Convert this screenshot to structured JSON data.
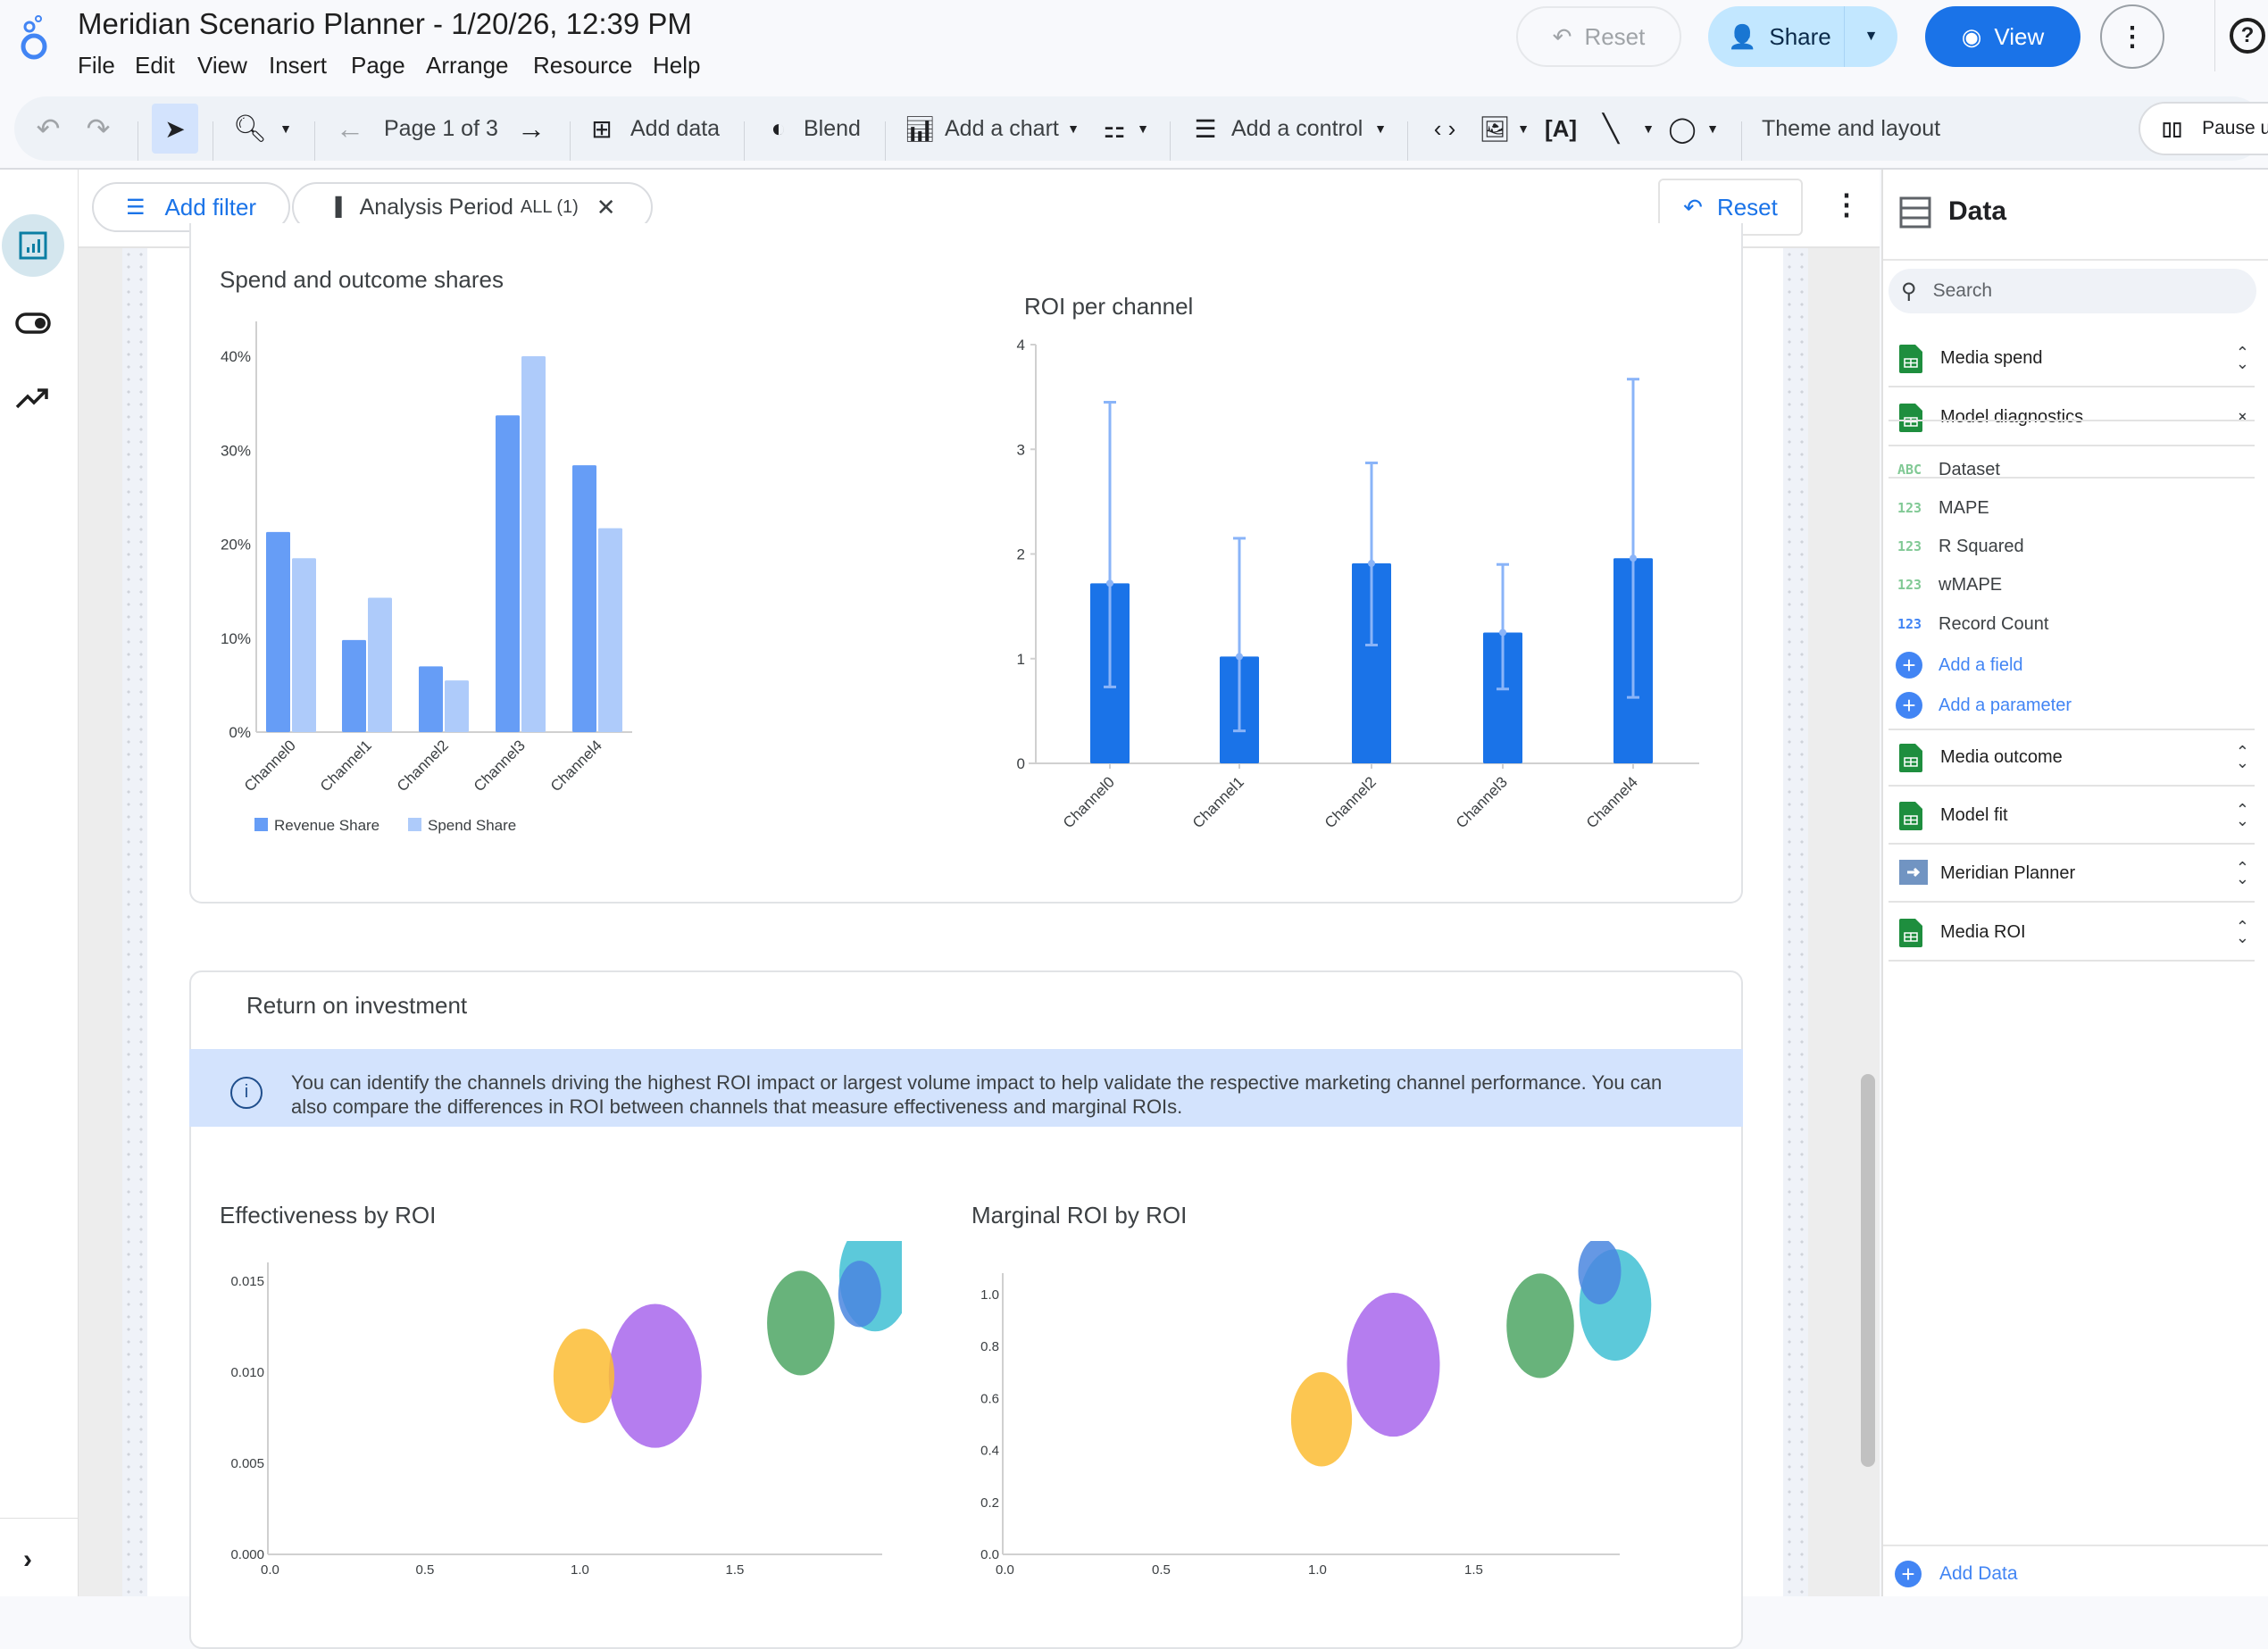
{
  "app": {
    "title": "Meridian Scenario Planner - 1/20/26, 12:39 PM",
    "menu": [
      "File",
      "Edit",
      "View",
      "Insert",
      "Page",
      "Arrange",
      "Resource",
      "Help"
    ],
    "reset_label": "Reset",
    "share_label": "Share",
    "view_label": "View"
  },
  "toolbar": {
    "page_indicator": "Page 1 of 3",
    "add_data": "Add data",
    "blend": "Blend",
    "add_chart": "Add a chart",
    "add_control": "Add a control",
    "theme_layout": "Theme and layout",
    "pause": "Pause u"
  },
  "filterbar": {
    "add_filter": "Add filter",
    "chip_label": "Analysis Period",
    "chip_value": "ALL (1)",
    "reset": "Reset"
  },
  "section2": {
    "title": "Return on investment",
    "info": "You can identify the channels driving the highest ROI impact or largest volume impact to help validate the respective marketing channel performance. You can also compare the differences in ROI between channels that measure effectiveness and marginal ROIs."
  },
  "data_panel": {
    "title": "Data",
    "search_placeholder": "Search",
    "sources": [
      {
        "name": "Media spend",
        "icon": "sheets-icon"
      },
      {
        "name": "Model diagnostics",
        "icon": "sheets-icon",
        "expanded": true
      },
      {
        "name": "Media outcome",
        "icon": "sheets-icon"
      },
      {
        "name": "Model fit",
        "icon": "sheets-icon"
      },
      {
        "name": "Meridian Planner",
        "icon": "connector-icon"
      },
      {
        "name": "Media ROI",
        "icon": "sheets-icon"
      }
    ],
    "fields": [
      {
        "type": "ABC",
        "name": "Dataset",
        "color": "#81c995"
      },
      {
        "type": "123",
        "name": "MAPE",
        "color": "#81c995"
      },
      {
        "type": "123",
        "name": "R Squared",
        "color": "#81c995"
      },
      {
        "type": "123",
        "name": "wMAPE",
        "color": "#81c995"
      },
      {
        "type": "123",
        "name": "Record Count",
        "color": "#4285f4"
      }
    ],
    "add_field": "Add a field",
    "add_parameter": "Add a parameter",
    "add_data": "Add Data"
  },
  "colors": {
    "accent": "#1a73e8",
    "revenue": "#669df6",
    "spend": "#aecbfa",
    "roi_bar": "#1a73e8",
    "error_bar": "#8ab4f8"
  },
  "chart_data": [
    {
      "type": "bar",
      "title": "Spend and outcome shares",
      "categories": [
        "Channel0",
        "Channel1",
        "Channel2",
        "Channel3",
        "Channel4"
      ],
      "series": [
        {
          "name": "Revenue Share",
          "values": [
            21.3,
            9.8,
            7.0,
            33.7,
            28.4
          ],
          "color": "#669df6"
        },
        {
          "name": "Spend Share",
          "values": [
            18.5,
            14.3,
            5.5,
            40.0,
            21.7
          ],
          "color": "#aecbfa"
        }
      ],
      "yticks": [
        "0%",
        "10%",
        "20%",
        "30%",
        "40%"
      ],
      "ylim": [
        0,
        40
      ],
      "legend": "bottom-left"
    },
    {
      "type": "bar",
      "title": "ROI per channel",
      "categories": [
        "Channel0",
        "Channel1",
        "Channel2",
        "Channel3",
        "Channel4"
      ],
      "values": [
        1.72,
        1.02,
        1.91,
        1.25,
        1.96
      ],
      "error_low": [
        0.73,
        0.31,
        1.13,
        0.71,
        0.63
      ],
      "error_high": [
        3.45,
        2.15,
        2.87,
        1.9,
        3.67
      ],
      "yticks": [
        "0",
        "1",
        "2",
        "3",
        "4"
      ],
      "ylim": [
        0,
        4
      ]
    },
    {
      "type": "scatter",
      "title": "Effectiveness by ROI",
      "points": [
        {
          "category": "Channel0",
          "x": 1.72,
          "y": 0.0127,
          "size": 18.5,
          "color": "#4ea664"
        },
        {
          "category": "Channel1",
          "x": 1.02,
          "y": 0.0098,
          "size": 14.3,
          "color": "#fbbc32"
        },
        {
          "category": "Channel2",
          "x": 1.91,
          "y": 0.0143,
          "size": 5.5,
          "color": "#4a86df"
        },
        {
          "category": "Channel3",
          "x": 1.25,
          "y": 0.0098,
          "size": 40.0,
          "color": "#a866ec"
        },
        {
          "category": "Channel4",
          "x": 1.96,
          "y": 0.0153,
          "size": 21.7,
          "color": "#3fc0d3"
        }
      ],
      "xticks": [
        "0.0",
        "0.5",
        "1.0",
        "1.5"
      ],
      "yticks": [
        "0.000",
        "0.005",
        "0.010",
        "0.015"
      ],
      "xlim": [
        0,
        1.97
      ],
      "ylim": [
        0,
        0.016
      ]
    },
    {
      "type": "scatter",
      "title": "Marginal ROI by ROI",
      "points": [
        {
          "category": "Channel0",
          "x": 1.72,
          "y": 0.88,
          "size": 18.5,
          "color": "#4ea664"
        },
        {
          "category": "Channel1",
          "x": 1.02,
          "y": 0.52,
          "size": 14.3,
          "color": "#fbbc32"
        },
        {
          "category": "Channel2",
          "x": 1.91,
          "y": 1.09,
          "size": 5.5,
          "color": "#4a86df"
        },
        {
          "category": "Channel3",
          "x": 1.25,
          "y": 0.73,
          "size": 40.0,
          "color": "#a866ec"
        },
        {
          "category": "Channel4",
          "x": 1.96,
          "y": 0.96,
          "size": 21.7,
          "color": "#3fc0d3"
        }
      ],
      "xticks": [
        "0.0",
        "0.5",
        "1.0",
        "1.5"
      ],
      "yticks": [
        "0.0",
        "0.2",
        "0.4",
        "0.6",
        "0.8",
        "1.0"
      ],
      "xlim": [
        0,
        1.97
      ],
      "ylim": [
        0,
        1.08
      ]
    }
  ]
}
